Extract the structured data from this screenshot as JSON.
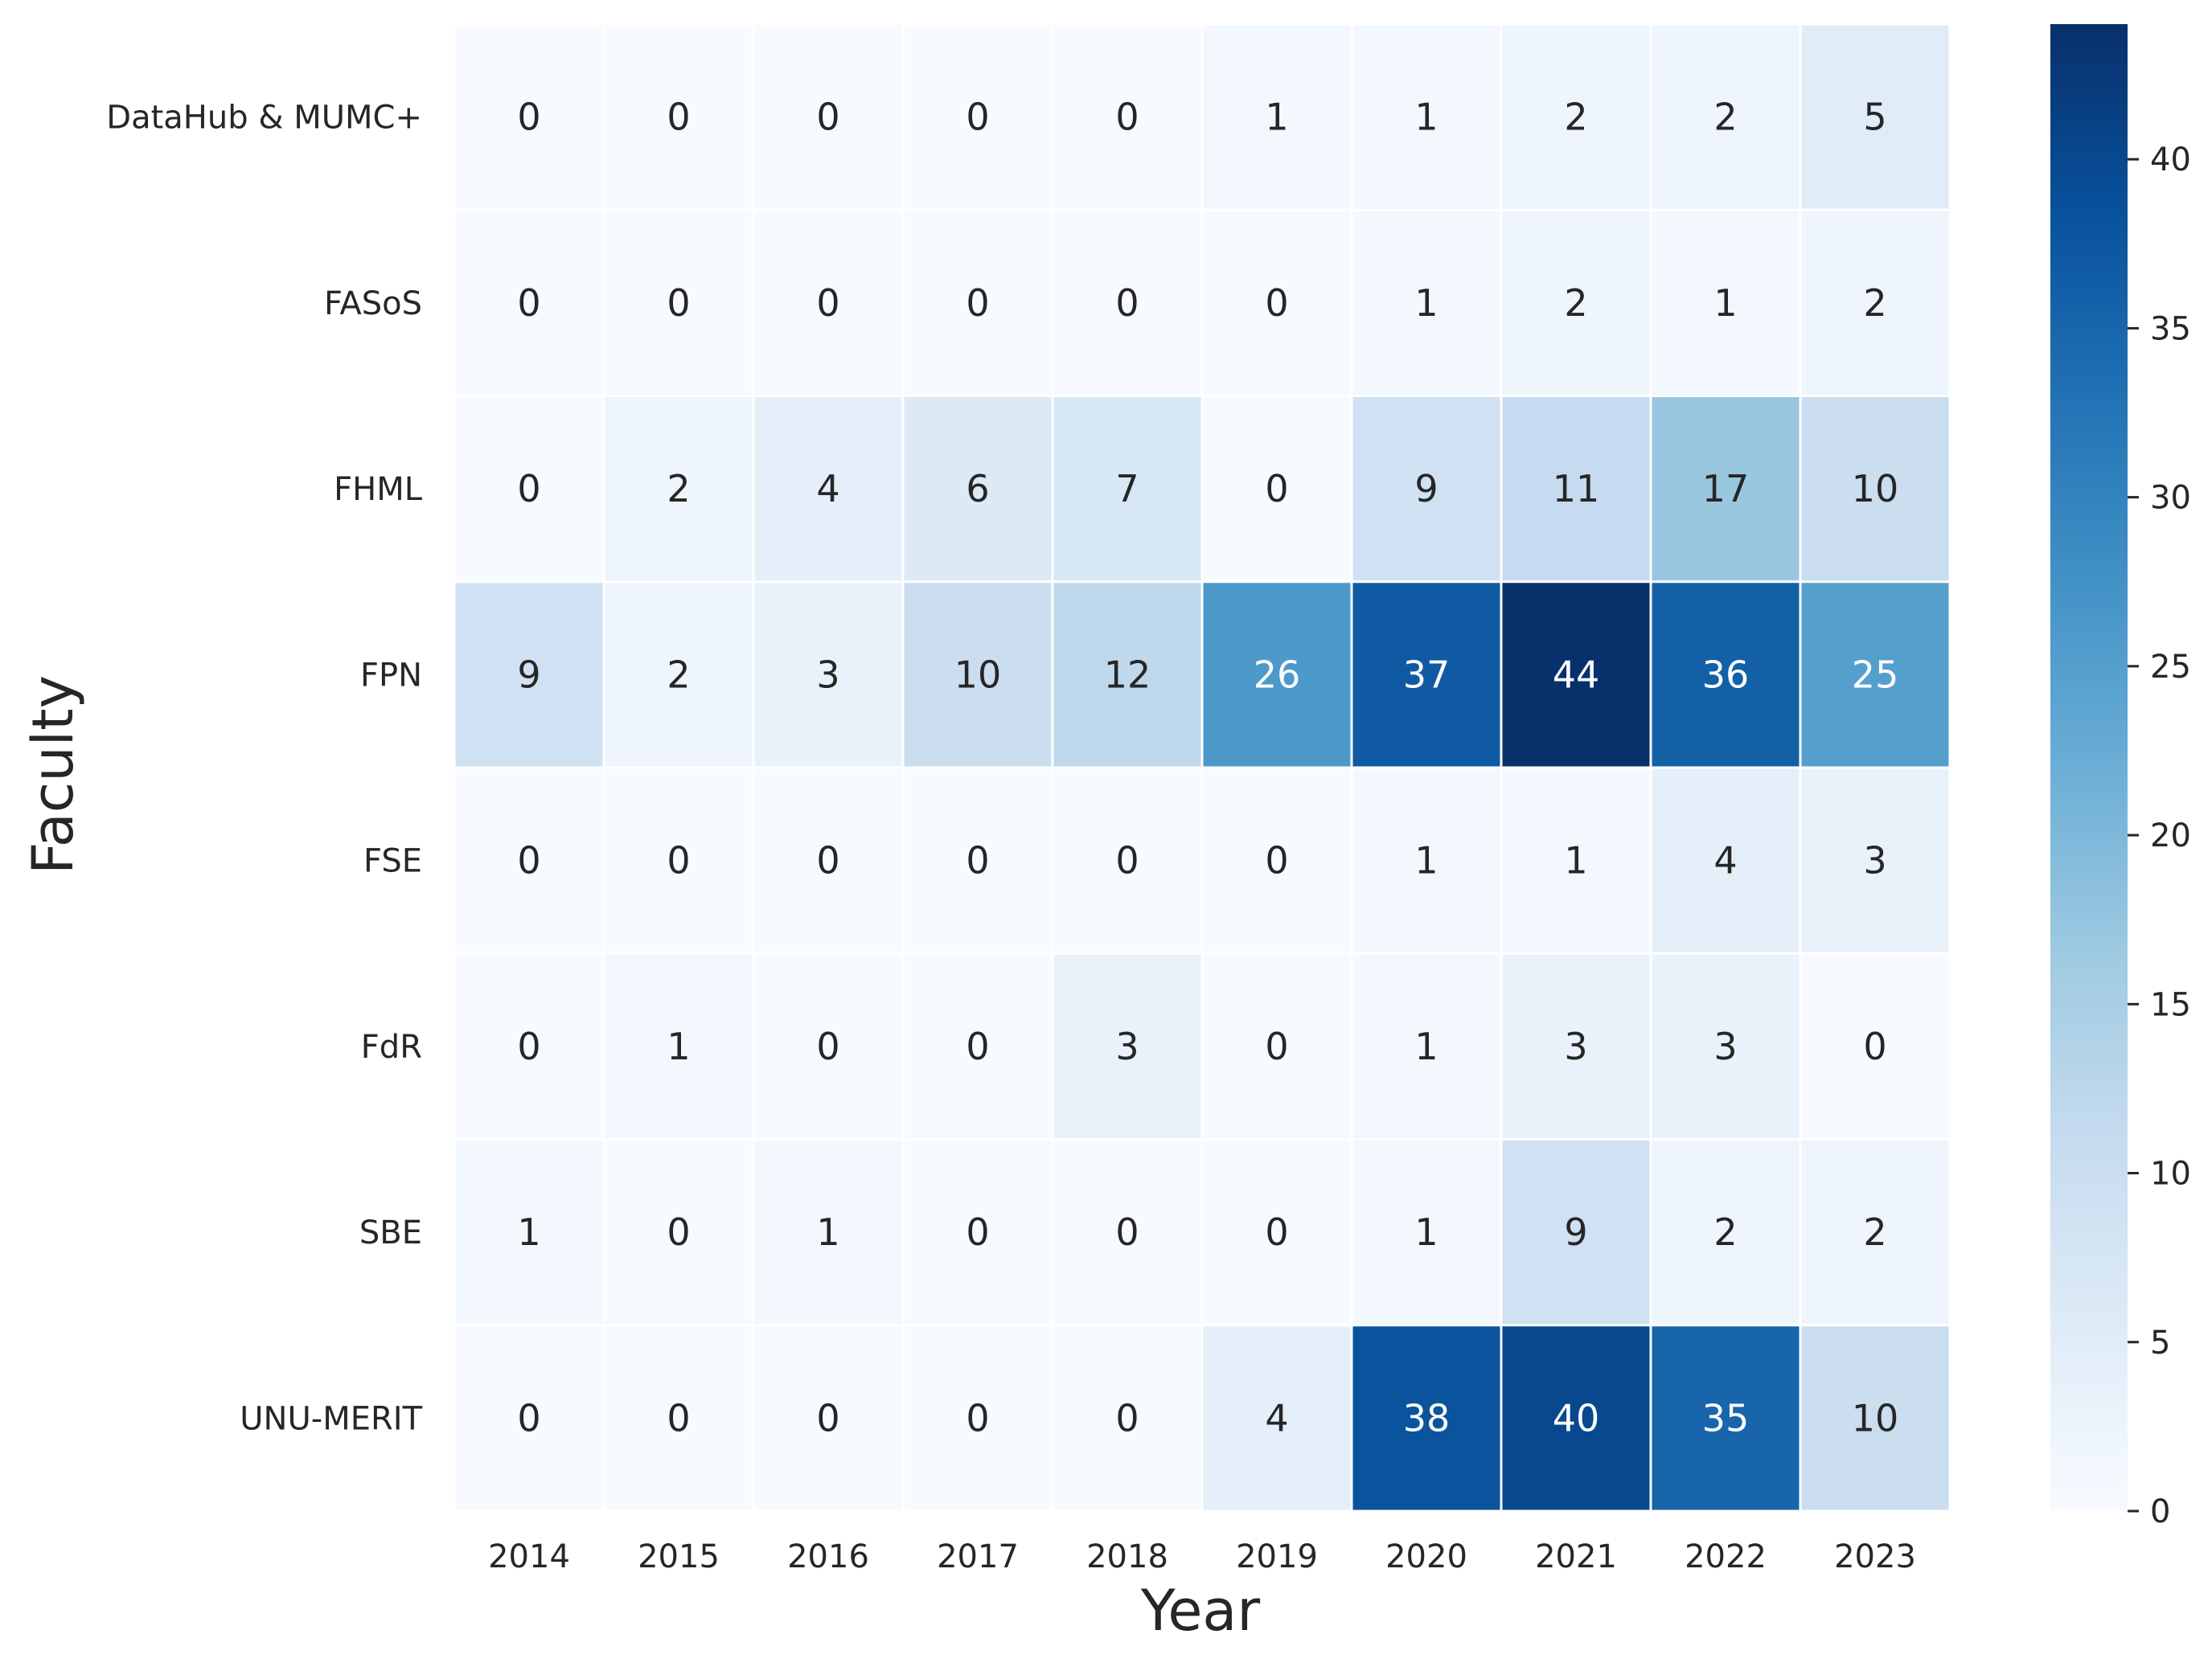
{
  "chart_data": {
    "type": "heatmap",
    "title": "",
    "xlabel": "Year",
    "ylabel": "Faculty",
    "colormap": "Blues",
    "color_range": [
      0,
      44
    ],
    "colorbar_ticks": [
      0,
      5,
      10,
      15,
      20,
      25,
      30,
      35,
      40
    ],
    "annotated": true,
    "grid_line_color": "#ffffff",
    "x_categories": [
      "2014",
      "2015",
      "2016",
      "2017",
      "2018",
      "2019",
      "2020",
      "2021",
      "2022",
      "2023"
    ],
    "y_categories": [
      "DataHub & MUMC+",
      "FASoS",
      "FHML",
      "FPN",
      "FSE",
      "FdR",
      "SBE",
      "UNU-MERIT"
    ],
    "values": [
      [
        0,
        0,
        0,
        0,
        0,
        1,
        1,
        2,
        2,
        5
      ],
      [
        0,
        0,
        0,
        0,
        0,
        0,
        1,
        2,
        1,
        2
      ],
      [
        0,
        2,
        4,
        6,
        7,
        0,
        9,
        11,
        17,
        10
      ],
      [
        9,
        2,
        3,
        10,
        12,
        26,
        37,
        44,
        36,
        25
      ],
      [
        0,
        0,
        0,
        0,
        0,
        0,
        1,
        1,
        4,
        3
      ],
      [
        0,
        1,
        0,
        0,
        3,
        0,
        1,
        3,
        3,
        0
      ],
      [
        1,
        0,
        1,
        0,
        0,
        0,
        1,
        9,
        2,
        2
      ],
      [
        0,
        0,
        0,
        0,
        0,
        4,
        38,
        40,
        35,
        10
      ]
    ]
  }
}
